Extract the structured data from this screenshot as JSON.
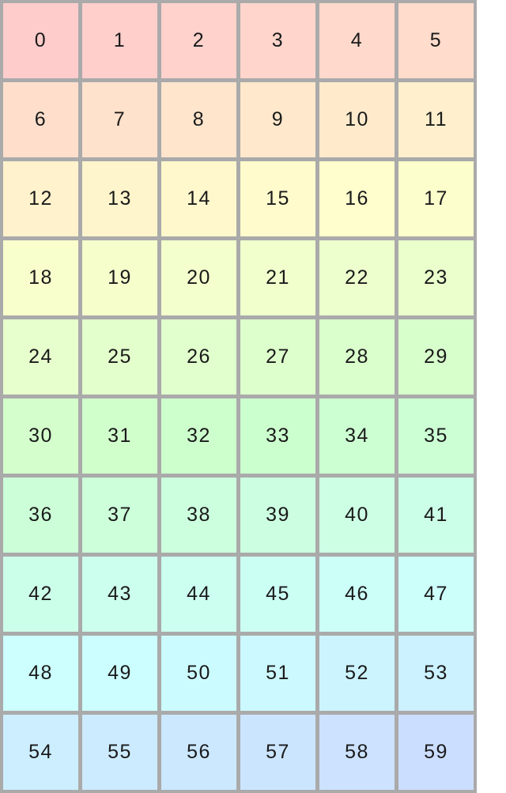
{
  "page": {
    "background": "#ffffff"
  },
  "grid": {
    "columns": 6,
    "rows": 10,
    "line_color": "#aaaaaa",
    "text_color": "#1a1a1a",
    "cells": [
      {
        "label": "0",
        "color": "#ffcccc"
      },
      {
        "label": "1",
        "color": "#ffcfcc"
      },
      {
        "label": "2",
        "color": "#ffd2cc"
      },
      {
        "label": "3",
        "color": "#ffd5cc"
      },
      {
        "label": "4",
        "color": "#ffd9cc"
      },
      {
        "label": "5",
        "color": "#ffdccc"
      },
      {
        "label": "6",
        "color": "#ffdfcc"
      },
      {
        "label": "7",
        "color": "#ffe2cc"
      },
      {
        "label": "8",
        "color": "#ffe5cc"
      },
      {
        "label": "9",
        "color": "#ffe8cc"
      },
      {
        "label": "10",
        "color": "#ffebcc"
      },
      {
        "label": "11",
        "color": "#ffefcc"
      },
      {
        "label": "12",
        "color": "#fff2cc"
      },
      {
        "label": "13",
        "color": "#fff5cc"
      },
      {
        "label": "14",
        "color": "#fff8cc"
      },
      {
        "label": "15",
        "color": "#fffbcc"
      },
      {
        "label": "16",
        "color": "#fffecc"
      },
      {
        "label": "17",
        "color": "#fcffcc"
      },
      {
        "label": "18",
        "color": "#f9ffcc"
      },
      {
        "label": "19",
        "color": "#f6ffcc"
      },
      {
        "label": "20",
        "color": "#f3ffcc"
      },
      {
        "label": "21",
        "color": "#f0ffcc"
      },
      {
        "label": "22",
        "color": "#edffcc"
      },
      {
        "label": "23",
        "color": "#eaffcc"
      },
      {
        "label": "24",
        "color": "#e7ffcc"
      },
      {
        "label": "25",
        "color": "#e3ffcc"
      },
      {
        "label": "26",
        "color": "#e0ffcc"
      },
      {
        "label": "27",
        "color": "#ddffcc"
      },
      {
        "label": "28",
        "color": "#daffcc"
      },
      {
        "label": "29",
        "color": "#d7ffcc"
      },
      {
        "label": "30",
        "color": "#d4ffcc"
      },
      {
        "label": "31",
        "color": "#d1ffcc"
      },
      {
        "label": "32",
        "color": "#cdffcc"
      },
      {
        "label": "33",
        "color": "#ccffce"
      },
      {
        "label": "34",
        "color": "#ccffd1"
      },
      {
        "label": "35",
        "color": "#ccffd4"
      },
      {
        "label": "36",
        "color": "#ccffd7"
      },
      {
        "label": "37",
        "color": "#ccffda"
      },
      {
        "label": "38",
        "color": "#ccffde"
      },
      {
        "label": "39",
        "color": "#ccffe1"
      },
      {
        "label": "40",
        "color": "#ccffe4"
      },
      {
        "label": "41",
        "color": "#ccffe7"
      },
      {
        "label": "42",
        "color": "#ccffea"
      },
      {
        "label": "43",
        "color": "#ccffed"
      },
      {
        "label": "44",
        "color": "#ccfff0"
      },
      {
        "label": "45",
        "color": "#ccfff4"
      },
      {
        "label": "46",
        "color": "#ccfff7"
      },
      {
        "label": "47",
        "color": "#ccfffa"
      },
      {
        "label": "48",
        "color": "#ccfffd"
      },
      {
        "label": "49",
        "color": "#ccfeff"
      },
      {
        "label": "50",
        "color": "#ccfbff"
      },
      {
        "label": "51",
        "color": "#ccf8ff"
      },
      {
        "label": "52",
        "color": "#ccf4ff"
      },
      {
        "label": "53",
        "color": "#ccf1ff"
      },
      {
        "label": "54",
        "color": "#cceeff"
      },
      {
        "label": "55",
        "color": "#ccebff"
      },
      {
        "label": "56",
        "color": "#cce8ff"
      },
      {
        "label": "57",
        "color": "#cce5ff"
      },
      {
        "label": "58",
        "color": "#cce2ff"
      },
      {
        "label": "59",
        "color": "#ccdeff"
      }
    ]
  }
}
